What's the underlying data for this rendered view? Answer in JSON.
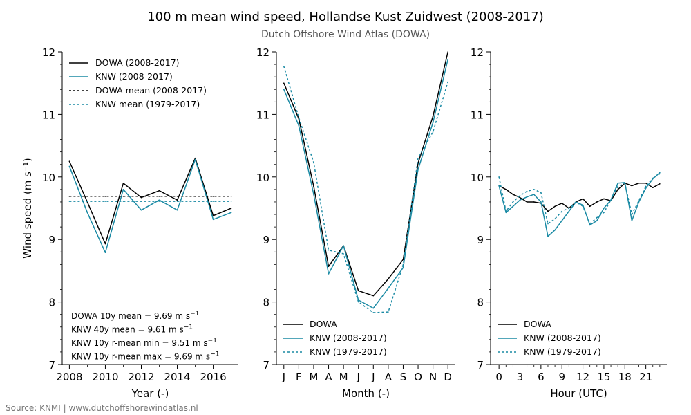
{
  "figure": {
    "title": "100 m mean wind speed, Hollandse Kust Zuidwest (2008-2017)",
    "subtitle": "Dutch Offshore Wind Atlas (DOWA)",
    "source": "Source: KNMI | www.dutchoffshorewindatlas.nl"
  },
  "colors": {
    "dowa": "#000000",
    "knw": "#1a8aa4",
    "subtitle": "#555555",
    "source": "#777777"
  },
  "chart_data": [
    {
      "type": "line",
      "id": "annual",
      "xlabel": "Year (-)",
      "ylabel": "Wind speed (m s⁻¹)",
      "xlim": [
        2007.6,
        2017.4
      ],
      "ylim": [
        7,
        12
      ],
      "x": [
        2008,
        2009,
        2010,
        2011,
        2012,
        2013,
        2014,
        2015,
        2016,
        2017
      ],
      "xticks": [
        2008,
        2010,
        2012,
        2014,
        2016
      ],
      "xtick_labels": [
        "2008",
        "2010",
        "2012",
        "2014",
        "2016"
      ],
      "minor_xticks": [
        2009,
        2011,
        2013,
        2015,
        2017
      ],
      "yticks": [
        7,
        8,
        9,
        10,
        11,
        12
      ],
      "ytick_labels": [
        "7",
        "8",
        "9",
        "10",
        "11",
        "12"
      ],
      "series": [
        {
          "name": "DOWA (2008-2017)",
          "style": "solid",
          "color": "#000000",
          "values": [
            10.25,
            9.6,
            8.93,
            9.9,
            9.67,
            9.78,
            9.63,
            10.3,
            9.38,
            9.5
          ]
        },
        {
          "name": "KNW (2008-2017)",
          "style": "solid",
          "color": "#1a8aa4",
          "values": [
            10.17,
            9.43,
            8.79,
            9.8,
            9.47,
            9.63,
            9.47,
            10.28,
            9.32,
            9.43
          ]
        },
        {
          "name": "DOWA mean (2008-2017)",
          "style": "dotted",
          "color": "#000000",
          "values": [
            9.69,
            9.69,
            9.69,
            9.69,
            9.69,
            9.69,
            9.69,
            9.69,
            9.69,
            9.69
          ]
        },
        {
          "name": "KNW mean (1979-2017)",
          "style": "dotted",
          "color": "#1a8aa4",
          "values": [
            9.61,
            9.61,
            9.61,
            9.61,
            9.61,
            9.61,
            9.61,
            9.61,
            9.61,
            9.61
          ]
        }
      ],
      "legend": "top-left",
      "annotations": [
        {
          "label": "DOWA 10y mean = ",
          "value": " 9.69 m s",
          "unit": "−1"
        },
        {
          "label": "KNW 40y mean = ",
          "value": " 9.61 m s",
          "unit": "−1"
        },
        {
          "label": "KNW 10y r-mean min = ",
          "value": " 9.51 m s",
          "unit": "−1"
        },
        {
          "label": "KNW 10y r-mean max = ",
          "value": " 9.69 m s",
          "unit": "−1"
        }
      ],
      "grid": false
    },
    {
      "type": "line",
      "id": "monthly",
      "xlabel": "Month (-)",
      "ylabel": "",
      "xlim": [
        0.5,
        12.5
      ],
      "ylim": [
        7,
        12
      ],
      "x": [
        1,
        2,
        3,
        4,
        5,
        6,
        7,
        8,
        9,
        10,
        11,
        12
      ],
      "xticks": [
        1,
        2,
        3,
        4,
        5,
        6,
        7,
        8,
        9,
        10,
        11,
        12
      ],
      "xtick_labels": [
        "J",
        "F",
        "M",
        "A",
        "M",
        "J",
        "J",
        "A",
        "S",
        "O",
        "N",
        "D"
      ],
      "yticks": [
        7,
        8,
        9,
        10,
        11,
        12
      ],
      "ytick_labels": [
        "7",
        "8",
        "9",
        "10",
        "11",
        "12"
      ],
      "series": [
        {
          "name": "DOWA",
          "style": "solid",
          "color": "#000000",
          "values": [
            11.5,
            10.93,
            9.85,
            8.57,
            8.9,
            8.18,
            8.1,
            8.37,
            8.68,
            10.22,
            10.97,
            12.0
          ]
        },
        {
          "name": "KNW (2008-2017)",
          "style": "solid",
          "color": "#1a8aa4",
          "values": [
            11.4,
            10.82,
            9.72,
            8.45,
            8.9,
            8.03,
            7.9,
            8.22,
            8.55,
            10.12,
            10.87,
            11.88
          ]
        },
        {
          "name": "KNW (1979-2017)",
          "style": "dotted",
          "color": "#1a8aa4",
          "values": [
            11.77,
            10.95,
            10.23,
            8.83,
            8.77,
            8.0,
            7.83,
            7.84,
            8.6,
            10.3,
            10.72,
            11.52
          ]
        }
      ],
      "legend": "bottom-left",
      "grid": false
    },
    {
      "type": "line",
      "id": "diurnal",
      "xlabel": "Hour (UTC)",
      "ylabel": "",
      "xlim": [
        -1.2,
        24.0
      ],
      "ylim": [
        7,
        12
      ],
      "x": [
        0,
        1,
        2,
        3,
        4,
        5,
        6,
        7,
        8,
        9,
        10,
        11,
        12,
        13,
        14,
        15,
        16,
        17,
        18,
        19,
        20,
        21,
        22,
        23
      ],
      "xticks": [
        0,
        3,
        6,
        9,
        12,
        15,
        18,
        21
      ],
      "xtick_labels": [
        "0",
        "3",
        "6",
        "9",
        "12",
        "15",
        "18",
        "21"
      ],
      "minor_xticks": [
        1,
        2,
        4,
        5,
        7,
        8,
        10,
        11,
        13,
        14,
        16,
        17,
        19,
        20,
        22,
        23
      ],
      "yticks": [
        7,
        8,
        9,
        10,
        11,
        12
      ],
      "ytick_labels": [
        "7",
        "8",
        "9",
        "10",
        "11",
        "12"
      ],
      "series": [
        {
          "name": "DOWA",
          "style": "solid",
          "color": "#000000",
          "values": [
            9.86,
            9.8,
            9.72,
            9.67,
            9.6,
            9.6,
            9.58,
            9.45,
            9.53,
            9.58,
            9.5,
            9.6,
            9.65,
            9.53,
            9.6,
            9.65,
            9.62,
            9.8,
            9.9,
            9.86,
            9.9,
            9.9,
            9.83,
            9.89
          ]
        },
        {
          "name": "KNW (2008-2017)",
          "style": "solid",
          "color": "#1a8aa4",
          "values": [
            9.86,
            9.43,
            9.53,
            9.63,
            9.68,
            9.72,
            9.6,
            9.05,
            9.15,
            9.3,
            9.45,
            9.6,
            9.55,
            9.23,
            9.3,
            9.5,
            9.63,
            9.9,
            9.91,
            9.3,
            9.6,
            9.82,
            9.97,
            10.07
          ]
        },
        {
          "name": "KNW (1979-2017)",
          "style": "dotted",
          "color": "#1a8aa4",
          "values": [
            10.0,
            9.45,
            9.6,
            9.7,
            9.77,
            9.8,
            9.75,
            9.25,
            9.33,
            9.45,
            9.5,
            9.6,
            9.53,
            9.25,
            9.35,
            9.43,
            9.63,
            9.85,
            9.9,
            9.4,
            9.62,
            9.85,
            9.98,
            10.05
          ]
        }
      ],
      "legend": "bottom-left",
      "grid": false
    }
  ]
}
